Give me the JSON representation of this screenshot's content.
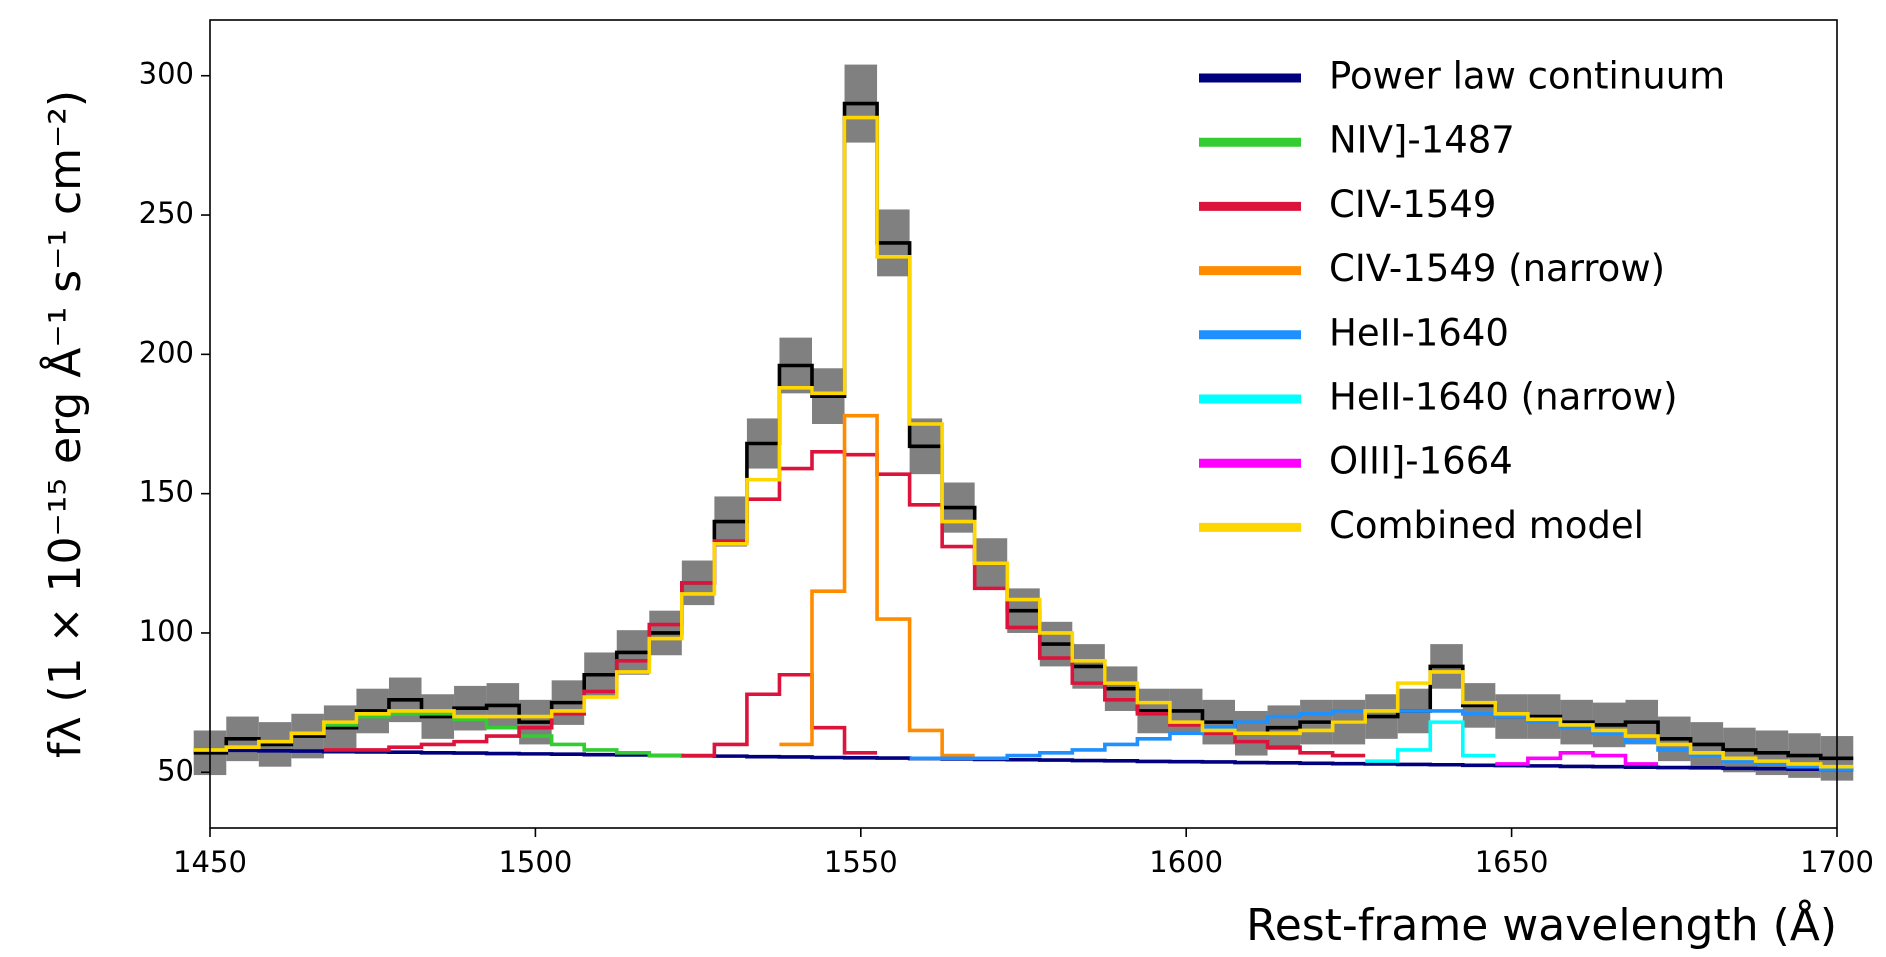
{
  "chart_data": {
    "type": "step",
    "x_label": "Rest-frame wavelength (Å)",
    "y_label": "fλ (1 × 10⁻¹⁵ erg Å⁻¹ s⁻¹ cm⁻²)",
    "xlim": [
      1450,
      1700
    ],
    "xticks": [
      1450,
      1500,
      1550,
      1600,
      1650,
      1700
    ],
    "ylim": [
      30,
      320
    ],
    "yticks": [
      50,
      100,
      150,
      200,
      250,
      300
    ],
    "legend": "upper right",
    "x": [
      1450,
      1455,
      1460,
      1465,
      1470,
      1475,
      1480,
      1485,
      1490,
      1495,
      1500,
      1505,
      1510,
      1515,
      1520,
      1525,
      1530,
      1535,
      1540,
      1545,
      1550,
      1555,
      1560,
      1565,
      1570,
      1575,
      1580,
      1585,
      1590,
      1595,
      1600,
      1605,
      1610,
      1615,
      1620,
      1625,
      1630,
      1635,
      1640,
      1645,
      1650,
      1655,
      1660,
      1665,
      1670,
      1675,
      1680,
      1685,
      1690,
      1695,
      1700
    ],
    "observed": {
      "color": "#000000",
      "error_color": "#808080",
      "values": [
        57,
        62,
        60,
        63,
        66,
        72,
        76,
        70,
        73,
        74,
        68,
        75,
        85,
        93,
        100,
        118,
        140,
        168,
        196,
        185,
        290,
        240,
        167,
        145,
        125,
        108,
        96,
        88,
        80,
        72,
        72,
        68,
        64,
        66,
        68,
        68,
        70,
        72,
        88,
        74,
        70,
        70,
        68,
        67,
        68,
        62,
        60,
        58,
        57,
        56,
        55
      ],
      "errors": [
        8,
        8,
        8,
        8,
        8,
        8,
        8,
        8,
        8,
        8,
        8,
        8,
        8,
        8,
        8,
        8,
        9,
        9,
        10,
        10,
        14,
        12,
        10,
        9,
        9,
        8,
        8,
        8,
        8,
        8,
        8,
        8,
        8,
        8,
        8,
        8,
        8,
        8,
        8,
        8,
        8,
        8,
        8,
        8,
        8,
        8,
        8,
        8,
        8,
        8,
        8
      ]
    },
    "series": [
      {
        "name": "Power law continuum",
        "color": "#00007f",
        "values": [
          58.0,
          57.9,
          57.7,
          57.6,
          57.4,
          57.3,
          57.2,
          57.0,
          56.9,
          56.7,
          56.6,
          56.5,
          56.3,
          56.2,
          56.0,
          55.9,
          55.8,
          55.6,
          55.5,
          55.3,
          55.2,
          55.1,
          54.9,
          54.8,
          54.6,
          54.5,
          54.4,
          54.2,
          54.1,
          53.9,
          53.8,
          53.7,
          53.5,
          53.4,
          53.2,
          53.1,
          53.0,
          52.8,
          52.7,
          52.5,
          52.4,
          52.3,
          52.1,
          52.0,
          51.8,
          51.7,
          51.6,
          51.4,
          51.3,
          51.1,
          51.0
        ]
      },
      {
        "name": "NIV]-1487",
        "color": "#33cc33",
        "values": [
          58,
          59,
          61,
          64,
          67,
          70,
          71,
          71,
          69,
          66,
          63,
          60,
          58,
          57,
          56,
          null,
          null,
          null,
          null,
          null,
          null,
          null,
          null,
          null,
          null,
          null,
          null,
          null,
          null,
          null,
          null,
          null,
          null,
          null,
          null,
          null,
          null,
          null,
          null,
          null,
          null,
          null,
          null,
          null,
          null,
          null,
          null,
          null,
          null,
          null,
          null
        ]
      },
      {
        "name": "CIV-1549",
        "color": "#dc143c",
        "values": [
          null,
          null,
          null,
          null,
          58,
          58,
          59,
          60,
          61,
          63,
          66,
          71,
          79,
          90,
          103,
          118,
          133,
          148,
          159,
          165,
          164,
          157,
          146,
          131,
          116,
          102,
          91,
          82,
          76,
          71,
          67,
          64,
          61,
          59,
          57,
          56,
          null,
          null,
          null,
          null,
          null,
          null,
          null,
          null,
          null,
          null,
          null,
          null,
          null,
          null,
          null
        ]
      },
      {
        "color": "#dc143c",
        "values": [
          null,
          null,
          null,
          null,
          null,
          null,
          null,
          null,
          null,
          null,
          null,
          null,
          null,
          null,
          null,
          56,
          60,
          78,
          85,
          66,
          57,
          null,
          null,
          null,
          null,
          null,
          null,
          null,
          null,
          null,
          null,
          null,
          null,
          null,
          null,
          null,
          null,
          null,
          null,
          null,
          null,
          null,
          null,
          null,
          null,
          null,
          null,
          null,
          null,
          null,
          null
        ]
      },
      {
        "name": "CIV-1549 (narrow)",
        "color": "#ff8c00",
        "values": [
          null,
          null,
          null,
          null,
          null,
          null,
          null,
          null,
          null,
          null,
          null,
          null,
          null,
          null,
          null,
          null,
          null,
          null,
          60,
          115,
          178,
          105,
          65,
          56,
          null,
          null,
          null,
          null,
          null,
          null,
          null,
          null,
          null,
          null,
          null,
          null,
          null,
          null,
          null,
          null,
          null,
          null,
          null,
          null,
          null,
          null,
          null,
          null,
          null,
          null,
          null
        ]
      },
      {
        "name": "HeII-1640",
        "color": "#1e90ff",
        "values": [
          null,
          null,
          null,
          null,
          null,
          null,
          null,
          null,
          null,
          null,
          null,
          null,
          null,
          null,
          null,
          null,
          null,
          null,
          null,
          null,
          null,
          null,
          55,
          55,
          55,
          56,
          57,
          58,
          60,
          62,
          64,
          66,
          68,
          70,
          71,
          72,
          72,
          72,
          72,
          71,
          70,
          68,
          66,
          64,
          61,
          58,
          56,
          54,
          53,
          52,
          51
        ]
      },
      {
        "name": "HeII-1640 (narrow)",
        "color": "#00ffff",
        "values": [
          null,
          null,
          null,
          null,
          null,
          null,
          null,
          null,
          null,
          null,
          null,
          null,
          null,
          null,
          null,
          null,
          null,
          null,
          null,
          null,
          null,
          null,
          null,
          null,
          null,
          null,
          null,
          null,
          null,
          null,
          null,
          null,
          null,
          null,
          null,
          null,
          54,
          58,
          68,
          56,
          null,
          null,
          null,
          null,
          null,
          null,
          null,
          null,
          null,
          null,
          null
        ]
      },
      {
        "name": "OIII]-1664",
        "color": "#ff00ff",
        "values": [
          null,
          null,
          null,
          null,
          null,
          null,
          null,
          null,
          null,
          null,
          null,
          null,
          null,
          null,
          null,
          null,
          null,
          null,
          null,
          null,
          null,
          null,
          null,
          null,
          null,
          null,
          null,
          null,
          null,
          null,
          null,
          null,
          null,
          null,
          null,
          null,
          null,
          null,
          null,
          null,
          53,
          55,
          57,
          56,
          53,
          null,
          null,
          null,
          null,
          null,
          null
        ]
      },
      {
        "name": "Combined model",
        "color": "#ffd700",
        "values": [
          58,
          59,
          61,
          64,
          68,
          71,
          72,
          72,
          70,
          70,
          70,
          72,
          77,
          86,
          98,
          114,
          132,
          155,
          188,
          186,
          285,
          235,
          175,
          140,
          125,
          112,
          100,
          90,
          82,
          75,
          68,
          65,
          64,
          64,
          65,
          68,
          72,
          82,
          86,
          75,
          71,
          69,
          67,
          65,
          63,
          60,
          57,
          55,
          54,
          53,
          52
        ]
      }
    ]
  }
}
